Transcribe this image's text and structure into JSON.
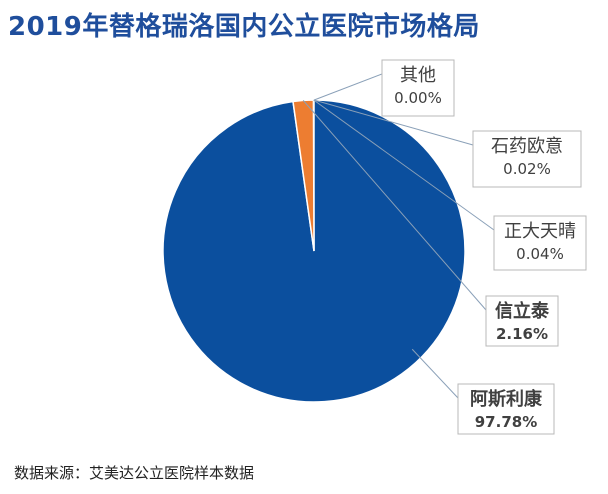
{
  "title": "2019年替格瑞洛国内公立医院市场格局",
  "source": "数据来源：艾美达公立医院样本数据",
  "colors": {
    "title": "#1f4e9c",
    "primary_slice": "#0b4f9e",
    "secondary_slice": "#ed7d31",
    "leader_line": "#8aa0b8",
    "label_border": "#b8b8b8"
  },
  "chart_data": {
    "type": "pie",
    "title": "2019年替格瑞洛国内公立医院市场格局",
    "slices": [
      {
        "label": "阿斯利康",
        "value_label": "97.78%",
        "value": 97.78,
        "color": "#0b4f9e",
        "bold": true
      },
      {
        "label": "信立泰",
        "value_label": "2.16%",
        "value": 2.16,
        "color": "#ed7d31",
        "bold": true
      },
      {
        "label": "正大天晴",
        "value_label": "0.04%",
        "value": 0.04,
        "color": "#5b9bd5",
        "bold": false
      },
      {
        "label": "石药欧意",
        "value_label": "0.02%",
        "value": 0.02,
        "color": "#a5a5a5",
        "bold": false
      },
      {
        "label": "其他",
        "value_label": "0.00%",
        "value": 0.0,
        "color": "#ffc000",
        "bold": false
      }
    ],
    "legend": "none",
    "data_labels": "callout-boxes-right"
  }
}
